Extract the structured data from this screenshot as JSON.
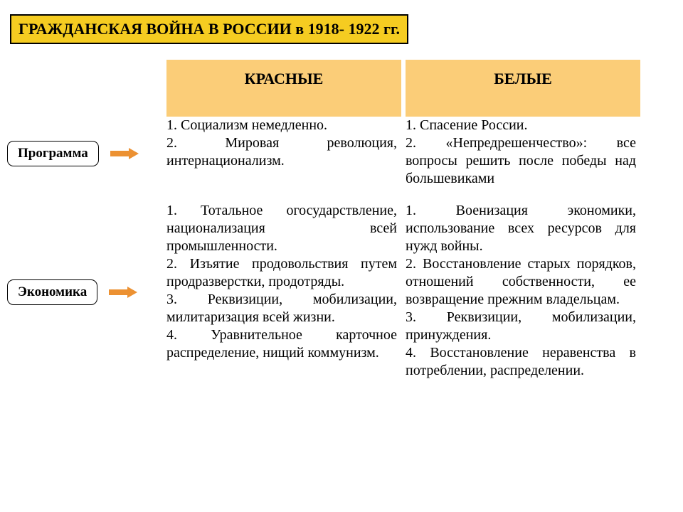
{
  "title": "ГРАЖДАНСКАЯ  ВОЙНА  В  РОССИИ  в  1918- 1922 гг.",
  "columns": {
    "left": "КРАСНЫЕ",
    "right": "БЕЛЫЕ"
  },
  "rows": {
    "program": {
      "label": "Программа",
      "red": "1. Социализм немедленно.\n2. Мировая революция, интернационализм.",
      "white": "1. Спасение России.\n2. «Непредрешенчество»: все вопросы решить после победы над большевиками"
    },
    "economy": {
      "label": "Экономика",
      "red": "1. Тотальное огосударствление, национализация всей промышленности.\n2. Изъятие продовольствия путем продразверстки, продотряды.\n3. Реквизиции, мобилизации, милитаризация всей жизни.\n4. Уравнительное карточное распределение, нищий коммунизм.",
      "white": "1. Военизация экономики, использование всех ресурсов для нужд войны.\n2. Восстановление старых порядков, отношений собственности, ее возвращение прежним владельцам.\n3. Реквизиции, мобилизации, принуждения.\n4. Восстановление неравенства в потреблении, распределении."
    }
  },
  "style": {
    "title_bg": "#f5cc21",
    "title_border": "#000000",
    "title_fontsize": 22,
    "header_bg": "#fbcd78",
    "header_fontsize": 22,
    "body_fontsize": 20,
    "arrow_color": "#ec9132",
    "label_fontsize": 19,
    "text_color": "#000000"
  }
}
